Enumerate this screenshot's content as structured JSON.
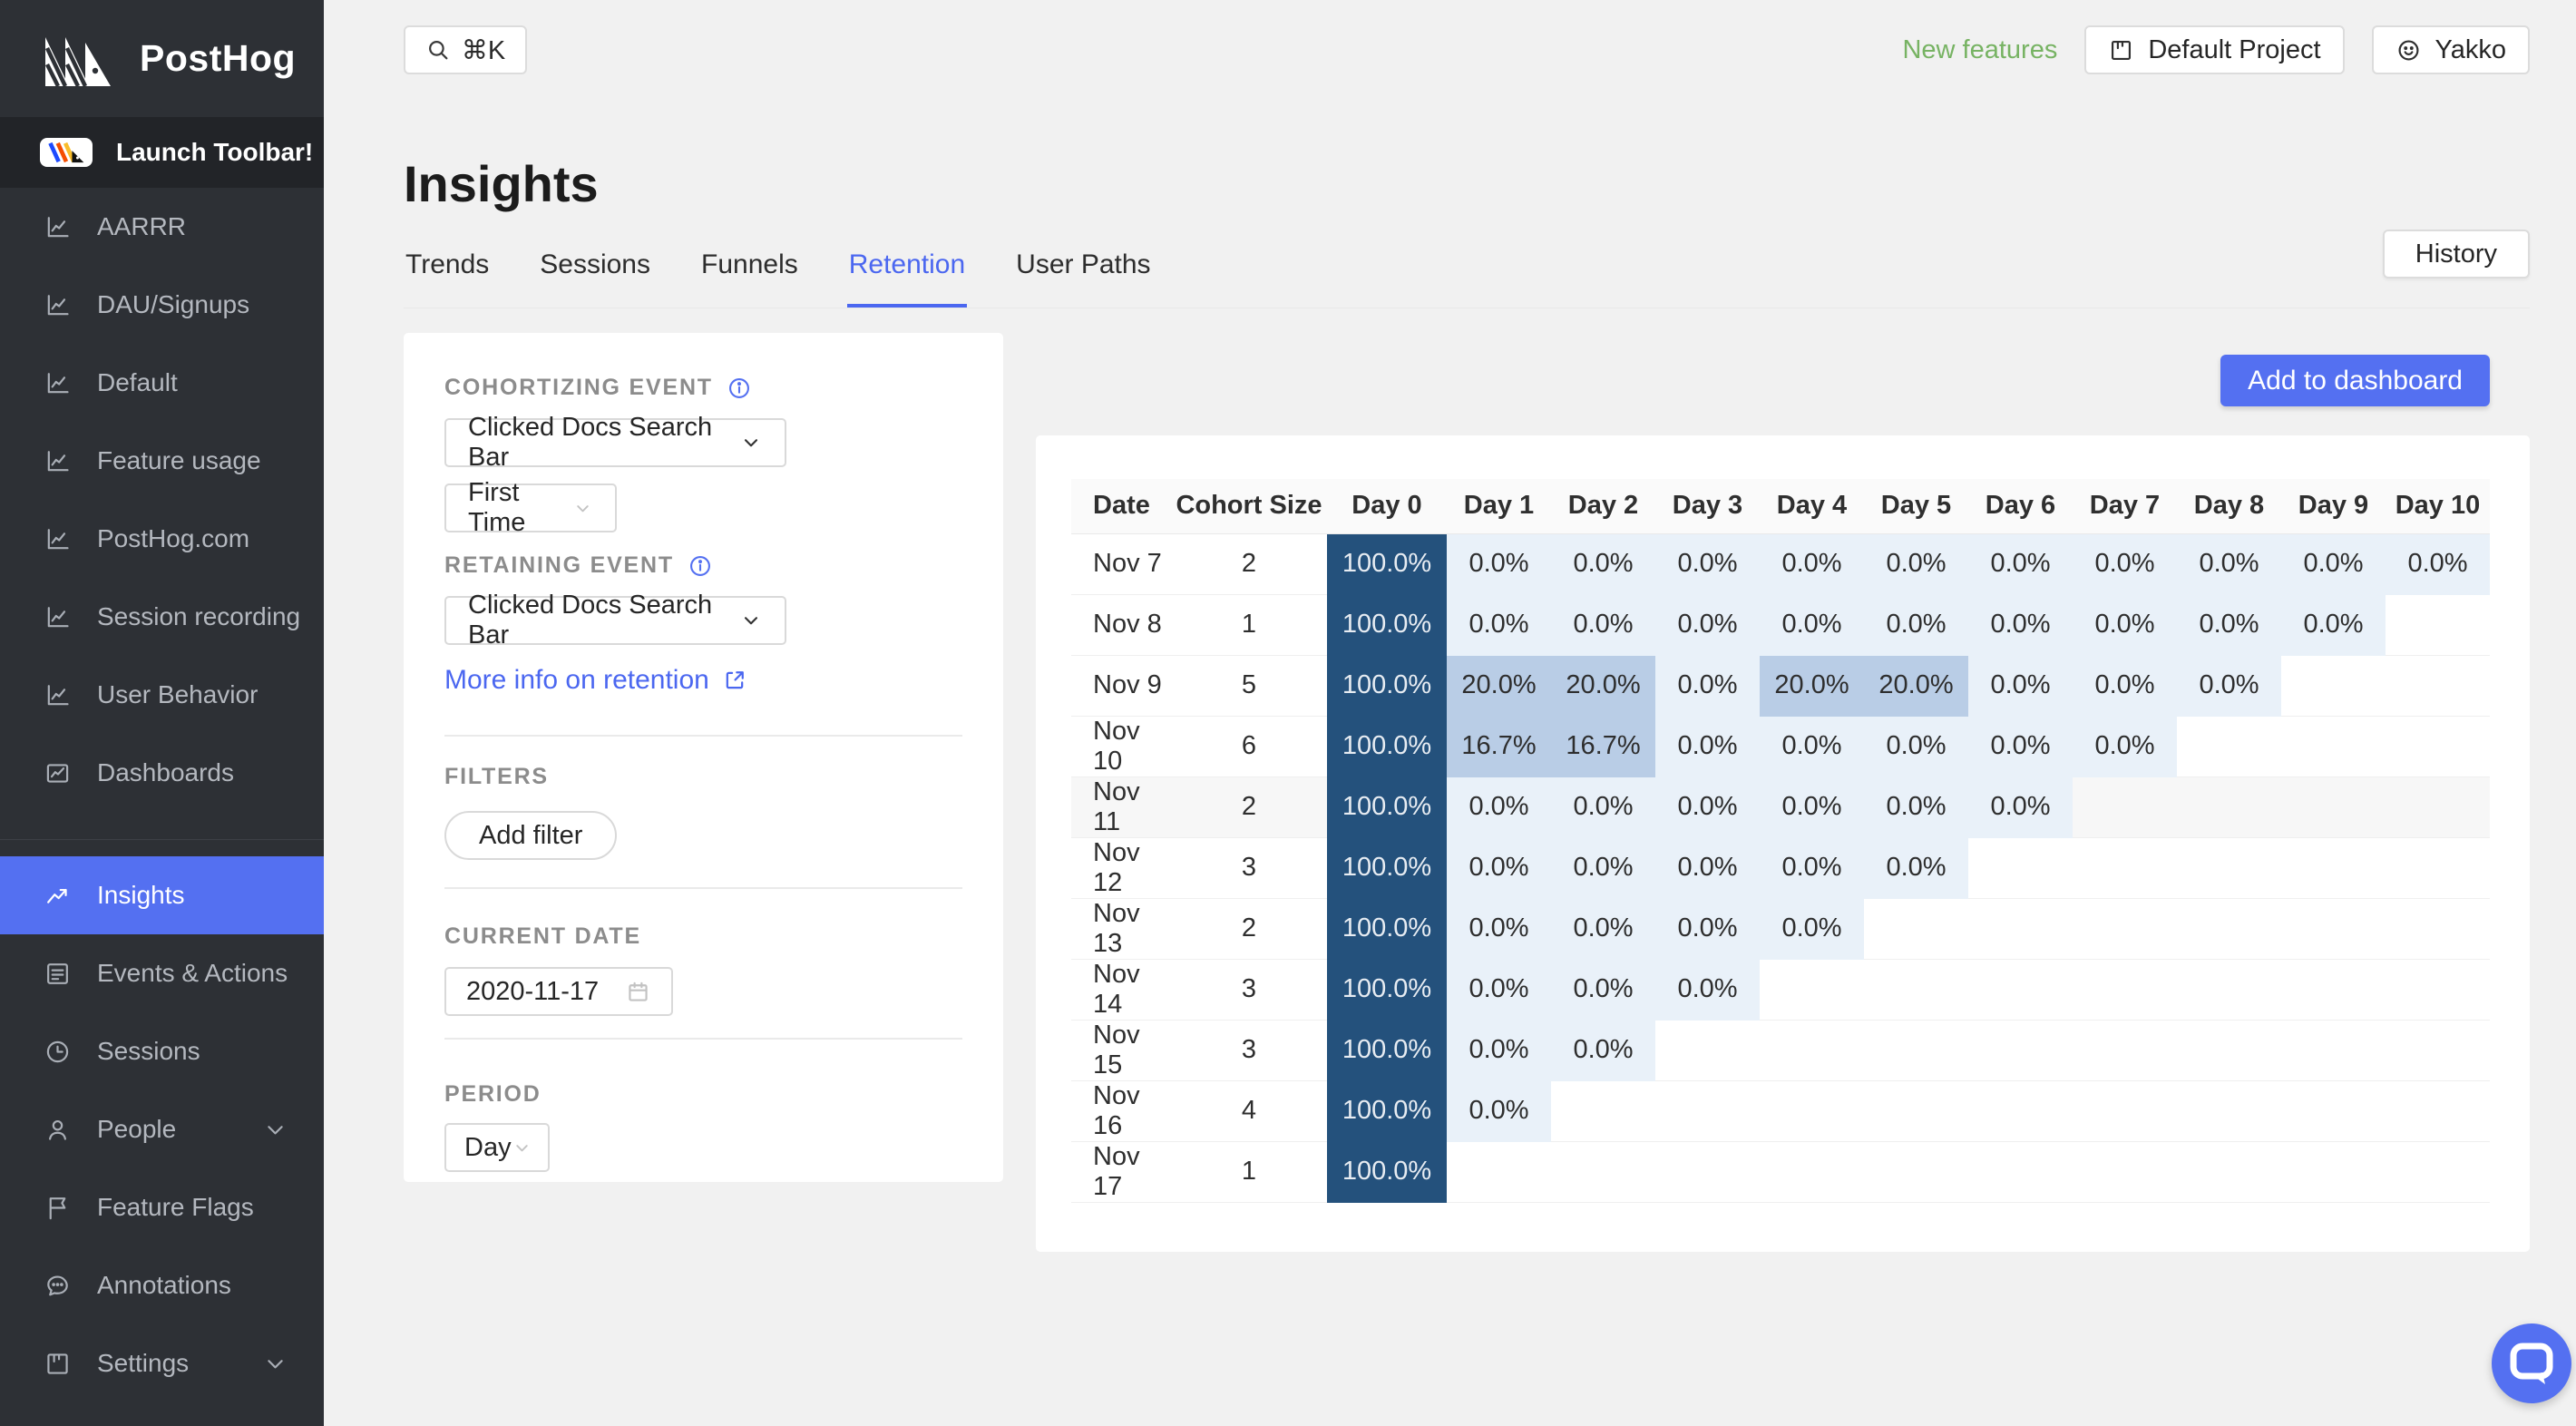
{
  "colors": {
    "accent": "#5470f1",
    "link": "#4b67f0",
    "green": "#77b363",
    "navy": "#24517c",
    "navy_text": "#e7ecf2",
    "cell_low": "#b9cde6",
    "cell_zero": "#e9f1f9",
    "row_highlight": "#f7f7f7"
  },
  "app": {
    "name": "PostHog"
  },
  "topbar": {
    "search_shortcut": "⌘K",
    "new_features_label": "New features",
    "project_button_label": "Default Project",
    "user_button_label": "Yakko"
  },
  "sidebar": {
    "launch_toolbar_label": "Launch Toolbar!",
    "items": [
      {
        "label": "AARRR",
        "icon": "line-chart"
      },
      {
        "label": "DAU/Signups",
        "icon": "line-chart"
      },
      {
        "label": "Default",
        "icon": "line-chart"
      },
      {
        "label": "Feature usage",
        "icon": "line-chart"
      },
      {
        "label": "PostHog.com",
        "icon": "line-chart"
      },
      {
        "label": "Session recording",
        "icon": "line-chart"
      },
      {
        "label": "User Behavior",
        "icon": "line-chart"
      },
      {
        "label": "Dashboards",
        "icon": "dashboard"
      },
      {
        "label": "Insights",
        "icon": "trend-up",
        "active": true,
        "divider_before": true
      },
      {
        "label": "Events & Actions",
        "icon": "events"
      },
      {
        "label": "Sessions",
        "icon": "clock"
      },
      {
        "label": "People",
        "icon": "person",
        "chevron": true
      },
      {
        "label": "Feature Flags",
        "icon": "flag"
      },
      {
        "label": "Annotations",
        "icon": "chat"
      },
      {
        "label": "Settings",
        "icon": "board",
        "chevron": true
      }
    ]
  },
  "page": {
    "title": "Insights",
    "tabs": [
      "Trends",
      "Sessions",
      "Funnels",
      "Retention",
      "User Paths"
    ],
    "active_tab": "Retention",
    "history_button_label": "History"
  },
  "filter_panel": {
    "cohortizing_event_label": "COHORTIZING EVENT",
    "cohortizing_event_value": "Clicked Docs Search Bar",
    "cohort_type_value": "First Time",
    "retaining_event_label": "RETAINING EVENT",
    "retaining_event_value": "Clicked Docs Search Bar",
    "more_info_link": "More info on retention",
    "filters_label": "FILTERS",
    "add_filter_label": "Add filter",
    "current_date_label": "CURRENT DATE",
    "current_date_value": "2020-11-17",
    "period_label": "PERIOD",
    "period_value": "Day"
  },
  "retention": {
    "add_to_dashboard_label": "Add to dashboard",
    "columns": [
      "Date",
      "Cohort Size",
      "Day 0",
      "Day 1",
      "Day 2",
      "Day 3",
      "Day 4",
      "Day 5",
      "Day 6",
      "Day 7",
      "Day 8",
      "Day 9",
      "Day 10"
    ],
    "rows": [
      {
        "date": "Nov 7",
        "cohort_size": 2,
        "values": [
          100,
          0,
          0,
          0,
          0,
          0,
          0,
          0,
          0,
          0,
          0
        ]
      },
      {
        "date": "Nov 8",
        "cohort_size": 1,
        "values": [
          100,
          0,
          0,
          0,
          0,
          0,
          0,
          0,
          0,
          0
        ]
      },
      {
        "date": "Nov 9",
        "cohort_size": 5,
        "values": [
          100,
          20,
          20,
          0,
          20,
          20,
          0,
          0,
          0
        ]
      },
      {
        "date": "Nov 10",
        "cohort_size": 6,
        "values": [
          100,
          16.7,
          16.7,
          0,
          0,
          0,
          0,
          0
        ]
      },
      {
        "date": "Nov 11",
        "cohort_size": 2,
        "values": [
          100,
          0,
          0,
          0,
          0,
          0,
          0
        ],
        "highlighted": true
      },
      {
        "date": "Nov 12",
        "cohort_size": 3,
        "values": [
          100,
          0,
          0,
          0,
          0,
          0
        ]
      },
      {
        "date": "Nov 13",
        "cohort_size": 2,
        "values": [
          100,
          0,
          0,
          0,
          0
        ]
      },
      {
        "date": "Nov 14",
        "cohort_size": 3,
        "values": [
          100,
          0,
          0,
          0
        ]
      },
      {
        "date": "Nov 15",
        "cohort_size": 3,
        "values": [
          100,
          0,
          0
        ]
      },
      {
        "date": "Nov 16",
        "cohort_size": 4,
        "values": [
          100,
          0
        ]
      },
      {
        "date": "Nov 17",
        "cohort_size": 1,
        "values": [
          100
        ]
      }
    ]
  }
}
